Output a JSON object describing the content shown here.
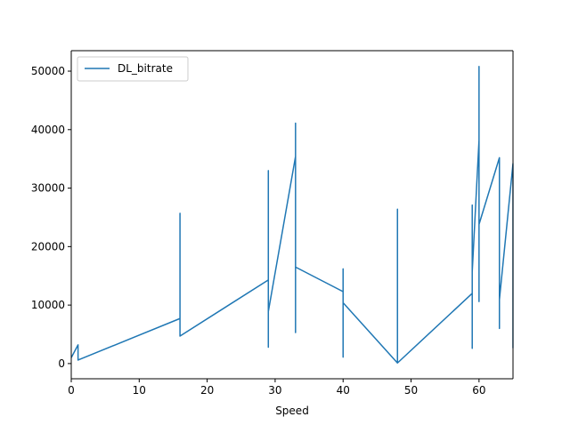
{
  "chart_data": {
    "type": "line",
    "title": "",
    "xlabel": "Speed",
    "ylabel": "",
    "xlim": [
      0,
      65
    ],
    "ylim": [
      -2600,
      53500
    ],
    "xticks": [
      0,
      10,
      20,
      30,
      40,
      50,
      60
    ],
    "yticks": [
      0,
      10000,
      20000,
      30000,
      40000,
      50000
    ],
    "grid": false,
    "legend_position": "top-left",
    "series": [
      {
        "name": "DL_bitrate",
        "color": "#1f77b4",
        "x": [
          0,
          1,
          1,
          16,
          16,
          16,
          29,
          29,
          29,
          29,
          33,
          33,
          33,
          33,
          40,
          40,
          40,
          40,
          48,
          48,
          48,
          59,
          59,
          59,
          59,
          60,
          60,
          60,
          60,
          63,
          63,
          63,
          63,
          65,
          65,
          65
        ],
        "y": [
          1000,
          3200,
          600,
          7700,
          25700,
          4700,
          14300,
          33000,
          2800,
          8900,
          35400,
          41100,
          5300,
          16500,
          12300,
          16200,
          1100,
          10400,
          100,
          26400,
          100,
          12000,
          27100,
          2600,
          15700,
          38200,
          50800,
          10600,
          23800,
          35200,
          6000,
          12800,
          10900,
          34200,
          2700,
          10900
        ]
      }
    ]
  }
}
